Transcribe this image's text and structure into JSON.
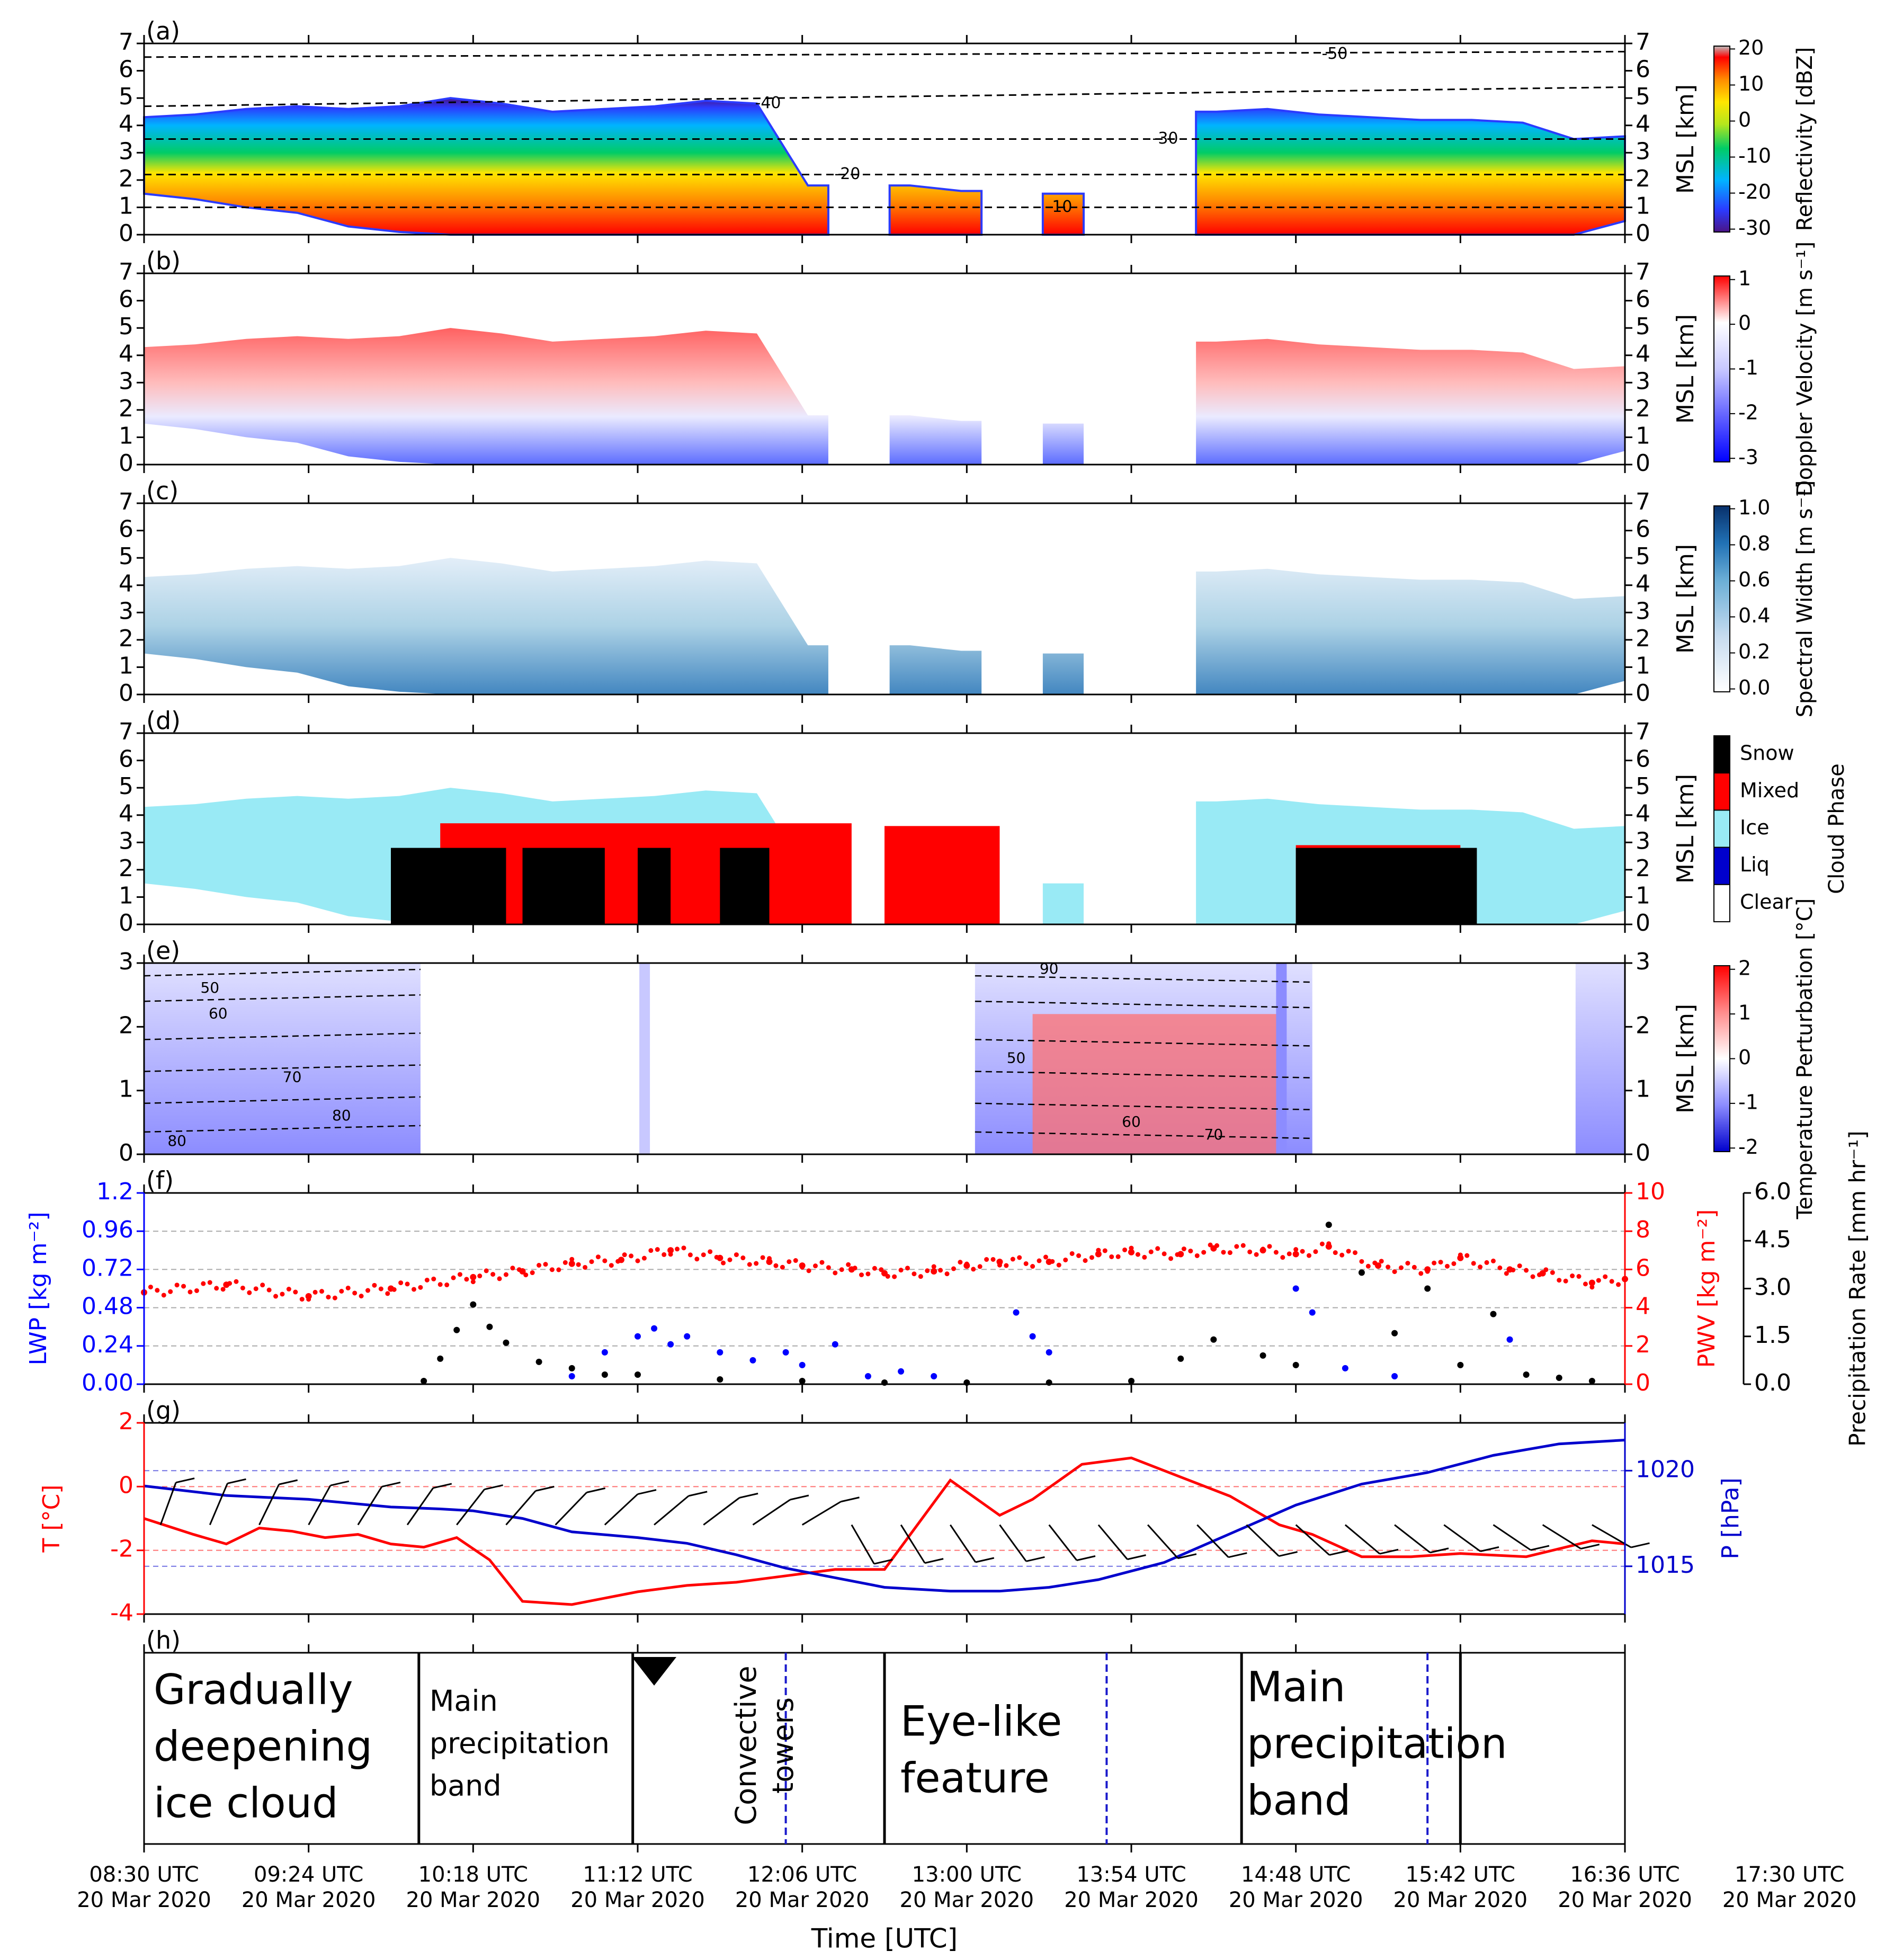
{
  "colors": {
    "reflectivity_scale": [
      "#4a1486",
      "#2b3bff",
      "#00b4ff",
      "#00cc66",
      "#b5e61d",
      "#ffe600",
      "#ff8c00",
      "#ff0000",
      "#bebebe"
    ],
    "doppler_scale": [
      "#0000ff",
      "#8c8cff",
      "#ffffff",
      "#ff6b6b",
      "#ff0000"
    ],
    "width_scale": [
      "#ffffff",
      "#c6dbef",
      "#6baed6",
      "#2171b5",
      "#08306b"
    ],
    "phase_clear": "#ffffff",
    "phase_liq": "#0000cc",
    "phase_ice": "#99eaf5",
    "phase_mixed": "#ff0000",
    "phase_snow": "#000000",
    "temp_pert_scale": [
      "#0000cc",
      "#8c8cff",
      "#ffffff",
      "#ff8c8c",
      "#ff0000"
    ],
    "lwp": "#0000ff",
    "pwv": "#ff0000",
    "precip": "#000000",
    "temperature": "#ff0000",
    "pressure": "#0000cc",
    "wind": "#000000"
  },
  "chart_data": [
    {
      "panel_label": "(a)",
      "type": "heatmap",
      "ylabel_right": "MSL [km]",
      "ylim": [
        0,
        7
      ],
      "yticks": [
        "0",
        "1",
        "2",
        "3",
        "4",
        "5",
        "6",
        "7"
      ],
      "colorbar_label": "Reflectivity [dBZ]",
      "colorbar_range": [
        -30,
        25
      ],
      "colorbar_ticks": [
        "20",
        "10",
        "0",
        "-10",
        "-20",
        "-30"
      ],
      "isotherm_labels": [
        "-50",
        "-40",
        "-30",
        "-20",
        "-10"
      ],
      "cloud_top_km": [
        4.3,
        4.4,
        4.6,
        4.7,
        4.6,
        4.7,
        5.0,
        4.8,
        4.5,
        4.6,
        4.7,
        4.9,
        4.8,
        1.8,
        0.0,
        1.8,
        1.6,
        0.0,
        1.5,
        0.0,
        0.0,
        4.5,
        4.6,
        4.4,
        4.3,
        4.2,
        4.2,
        4.1,
        3.5,
        3.6
      ],
      "cloud_base_km": [
        1.5,
        1.3,
        1.0,
        0.8,
        0.3,
        0.1,
        0.0,
        0.0,
        0.0,
        0.0,
        0.0,
        0.0,
        0.0,
        0.0,
        0.0,
        0.0,
        0.0,
        0.0,
        0.0,
        0.0,
        0.0,
        0.0,
        0.0,
        0.0,
        0.0,
        0.0,
        0.0,
        0.0,
        0.0,
        0.5
      ]
    },
    {
      "panel_label": "(b)",
      "type": "heatmap",
      "ylabel_right": "MSL [km]",
      "ylim": [
        0,
        7
      ],
      "yticks": [
        "0",
        "1",
        "2",
        "3",
        "4",
        "5",
        "6",
        "7"
      ],
      "colorbar_label": "Doppler Velocity [m s⁻¹]",
      "colorbar_range": [
        -3,
        1
      ],
      "colorbar_ticks": [
        "1",
        "0",
        "-1",
        "-2",
        "-3"
      ]
    },
    {
      "panel_label": "(c)",
      "type": "heatmap",
      "ylabel_right": "MSL [km]",
      "ylim": [
        0,
        7
      ],
      "yticks": [
        "0",
        "1",
        "2",
        "3",
        "4",
        "5",
        "6",
        "7"
      ],
      "colorbar_label": "Spectral Width [m s⁻¹]",
      "colorbar_range": [
        0,
        1
      ],
      "colorbar_ticks": [
        "1.0",
        "0.8",
        "0.6",
        "0.4",
        "0.2",
        "0.0"
      ]
    },
    {
      "panel_label": "(d)",
      "type": "heatmap",
      "ylabel_right": "MSL [km]",
      "ylim": [
        0,
        7
      ],
      "yticks": [
        "0",
        "1",
        "2",
        "3",
        "4",
        "5",
        "6",
        "7"
      ],
      "colorbar_label": "Cloud Phase",
      "categories": [
        "Snow",
        "Mixed",
        "Ice",
        "Liq",
        "Clear"
      ]
    },
    {
      "panel_label": "(e)",
      "type": "heatmap",
      "ylabel_right": "MSL [km]",
      "ylim": [
        0,
        3
      ],
      "yticks": [
        "0",
        "1",
        "2",
        "3"
      ],
      "colorbar_label": "Temperature Perturbation [°C]",
      "colorbar_range": [
        -2,
        2
      ],
      "colorbar_ticks": [
        "2",
        "1",
        "0",
        "-1",
        "-2"
      ],
      "rh_contour_labels": [
        "50",
        "60",
        "70",
        "80",
        "90"
      ]
    },
    {
      "panel_label": "(f)",
      "type": "scatter",
      "ylabel_left": "LWP [kg m⁻²]",
      "ylabel_right": "PWV [kg m⁻²]",
      "ylabel_far_right": "Precipitation Rate [mm hr⁻¹]",
      "ylim_left": [
        0,
        1.2
      ],
      "ylim_right": [
        0,
        10
      ],
      "ylim_far_right": [
        0,
        6
      ],
      "yticks_left": [
        "0.00",
        "0.24",
        "0.48",
        "0.72",
        "0.96",
        "1.2"
      ],
      "yticks_right": [
        "0",
        "2",
        "4",
        "6",
        "8",
        "10"
      ],
      "yticks_far_right": [
        "0.0",
        "1.5",
        "3.0",
        "4.5",
        "6.0"
      ],
      "series": [
        {
          "key": "pwv",
          "x_hours": [
            0.0,
            0.5,
            1.0,
            1.5,
            2.0,
            2.3,
            2.6,
            2.9,
            3.2,
            3.5,
            3.8,
            4.0,
            4.3,
            4.5,
            4.8,
            5.0,
            5.2,
            5.5,
            5.8,
            6.0,
            6.3,
            6.5,
            6.8,
            7.0,
            7.2,
            7.5,
            7.8,
            8.0,
            8.3,
            8.5,
            8.8,
            9.0
          ],
          "values": [
            4.8,
            5.2,
            4.6,
            5.0,
            5.6,
            5.9,
            6.3,
            6.5,
            7.0,
            6.6,
            6.4,
            6.2,
            6.0,
            5.8,
            5.9,
            6.2,
            6.4,
            6.4,
            6.8,
            6.9,
            6.8,
            7.1,
            7.0,
            6.8,
            7.2,
            6.2,
            6.0,
            6.6,
            6.0,
            5.8,
            5.3,
            5.5
          ]
        },
        {
          "key": "lwp",
          "x_hours": [
            2.6,
            2.8,
            3.0,
            3.1,
            3.2,
            3.3,
            3.5,
            3.7,
            3.9,
            4.0,
            4.2,
            4.4,
            4.6,
            4.8,
            5.3,
            5.4,
            5.5,
            7.0,
            7.1,
            7.3,
            7.6,
            8.3
          ],
          "values": [
            0.05,
            0.2,
            0.3,
            0.35,
            0.25,
            0.3,
            0.2,
            0.15,
            0.2,
            0.12,
            0.25,
            0.05,
            0.08,
            0.05,
            0.45,
            0.3,
            0.2,
            0.6,
            0.45,
            0.1,
            0.05,
            0.28
          ]
        },
        {
          "key": "precip",
          "x_hours": [
            1.7,
            1.8,
            1.9,
            2.0,
            2.1,
            2.2,
            2.4,
            2.6,
            2.8,
            3.0,
            3.5,
            4.0,
            4.5,
            5.0,
            5.5,
            6.0,
            6.3,
            6.5,
            6.8,
            7.0,
            7.2,
            7.4,
            7.6,
            7.8,
            8.0,
            8.2,
            8.4,
            8.6,
            8.8
          ],
          "values": [
            0.1,
            0.8,
            1.7,
            2.5,
            1.8,
            1.3,
            0.7,
            0.5,
            0.3,
            0.3,
            0.15,
            0.1,
            0.05,
            0.05,
            0.05,
            0.1,
            0.8,
            1.4,
            0.9,
            0.6,
            5.0,
            3.5,
            1.6,
            3.0,
            0.6,
            2.2,
            0.3,
            0.2,
            0.1
          ]
        }
      ]
    },
    {
      "panel_label": "(g)",
      "type": "line",
      "ylabel_left": "T [°C]",
      "ylabel_right": "P [hPa]",
      "ylim_left": [
        -4,
        2
      ],
      "ylim_right": [
        1012.5,
        1022.5
      ],
      "yticks_left": [
        "-4",
        "-2",
        "0",
        "2"
      ],
      "yticks_right": [
        "1015",
        "1020"
      ],
      "series": [
        {
          "key": "temperature",
          "x_hours": [
            0.0,
            0.3,
            0.5,
            0.7,
            0.9,
            1.1,
            1.3,
            1.5,
            1.7,
            1.9,
            2.1,
            2.3,
            2.6,
            3.0,
            3.3,
            3.6,
            3.9,
            4.2,
            4.5,
            4.9,
            5.2,
            5.4,
            5.7,
            6.0,
            6.3,
            6.6,
            6.9,
            7.1,
            7.4,
            7.7,
            8.0,
            8.4,
            8.8,
            9.0
          ],
          "values": [
            -1.0,
            -1.5,
            -1.8,
            -1.3,
            -1.4,
            -1.6,
            -1.5,
            -1.8,
            -1.9,
            -1.6,
            -2.3,
            -3.6,
            -3.7,
            -3.3,
            -3.1,
            -3.0,
            -2.8,
            -2.6,
            -2.6,
            0.2,
            -0.9,
            -0.4,
            0.7,
            0.9,
            0.3,
            -0.3,
            -1.2,
            -1.5,
            -2.2,
            -2.2,
            -2.1,
            -2.2,
            -1.7,
            -1.8
          ]
        },
        {
          "key": "pressure",
          "x_hours": [
            0.0,
            0.5,
            1.0,
            1.5,
            1.8,
            2.0,
            2.3,
            2.6,
            3.0,
            3.3,
            3.6,
            3.9,
            4.2,
            4.5,
            4.9,
            5.2,
            5.5,
            5.8,
            6.2,
            6.6,
            7.0,
            7.4,
            7.8,
            8.2,
            8.6,
            9.0
          ],
          "values": [
            1019.2,
            1018.7,
            1018.5,
            1018.1,
            1018.0,
            1017.9,
            1017.5,
            1016.8,
            1016.5,
            1016.2,
            1015.6,
            1014.9,
            1014.4,
            1013.9,
            1013.7,
            1013.7,
            1013.9,
            1014.3,
            1015.2,
            1016.7,
            1018.2,
            1019.3,
            1019.9,
            1020.8,
            1021.4,
            1021.6
          ]
        }
      ]
    }
  ],
  "panel_h": {
    "label": "(h)",
    "labels": {
      "ice_cloud": [
        "Gradually",
        "deepening",
        "ice cloud"
      ],
      "band1": [
        "Main",
        "precipitation",
        "band"
      ],
      "convective": [
        "Convective",
        "towers"
      ],
      "eye": [
        "Eye-like",
        "feature"
      ],
      "band2": [
        "Main",
        "precipitation",
        "band"
      ]
    }
  },
  "x_axis": {
    "label": "Time [UTC]",
    "ticks": [
      {
        "time": "08:30 UTC",
        "date": "20 Mar 2020"
      },
      {
        "time": "09:24 UTC",
        "date": "20 Mar 2020"
      },
      {
        "time": "10:18 UTC",
        "date": "20 Mar 2020"
      },
      {
        "time": "11:12 UTC",
        "date": "20 Mar 2020"
      },
      {
        "time": "12:06 UTC",
        "date": "20 Mar 2020"
      },
      {
        "time": "13:00 UTC",
        "date": "20 Mar 2020"
      },
      {
        "time": "13:54 UTC",
        "date": "20 Mar 2020"
      },
      {
        "time": "14:48 UTC",
        "date": "20 Mar 2020"
      },
      {
        "time": "15:42 UTC",
        "date": "20 Mar 2020"
      },
      {
        "time": "16:36 UTC",
        "date": "20 Mar 2020"
      },
      {
        "time": "17:30 UTC",
        "date": "20 Mar 2020"
      }
    ]
  }
}
